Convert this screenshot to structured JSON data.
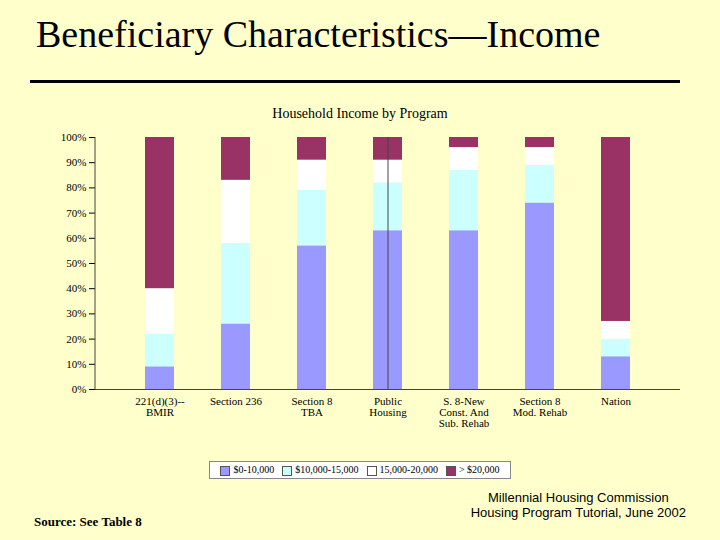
{
  "chart_data": {
    "type": "bar",
    "stacked": true,
    "title": "Beneficiary Characteristics—Income",
    "subtitle": "Household Income by Program",
    "categories": [
      "221(d)(3)--\nBMIR",
      "Section 236",
      "Section 8\nTBA",
      "Public\nHousing",
      "S. 8-New\nConst. And\nSub. Rehab",
      "Section 8\nMod. Rehab",
      "Nation"
    ],
    "series": [
      {
        "name": "$0-10,000",
        "color": "#9999FF",
        "values": [
          9,
          26,
          57,
          63,
          63,
          74,
          13
        ]
      },
      {
        "name": "$10,000-15,000",
        "color": "#CCFFFF",
        "values": [
          13,
          32,
          22,
          19,
          24,
          15,
          7
        ]
      },
      {
        "name": "15,000-20,000",
        "color": "#FFFFFF",
        "values": [
          18,
          25,
          12,
          9,
          9,
          7,
          7
        ]
      },
      {
        "name": "> $20,000",
        "color": "#993366",
        "values": [
          60,
          17,
          9,
          9,
          4,
          4,
          73
        ]
      }
    ],
    "ylim": [
      0,
      100
    ],
    "yticks": [
      {
        "value": 0,
        "label": "0%"
      },
      {
        "value": 10,
        "label": "10%"
      },
      {
        "value": 20,
        "label": "20%"
      },
      {
        "value": 30,
        "label": "30%"
      },
      {
        "value": 40,
        "label": "40%"
      },
      {
        "value": 50,
        "label": "50%"
      },
      {
        "value": 60,
        "label": "60%"
      },
      {
        "value": 70,
        "label": "70%"
      },
      {
        "value": 80,
        "label": "80%"
      },
      {
        "value": 90,
        "label": "90%"
      },
      {
        "value": 100,
        "label": "100%"
      }
    ],
    "grid": false,
    "legend": "bottom",
    "annotations": [
      "Source: See Table 8",
      "Millennial Housing Commission\nHousing Program Tutorial, June 2002"
    ]
  }
}
